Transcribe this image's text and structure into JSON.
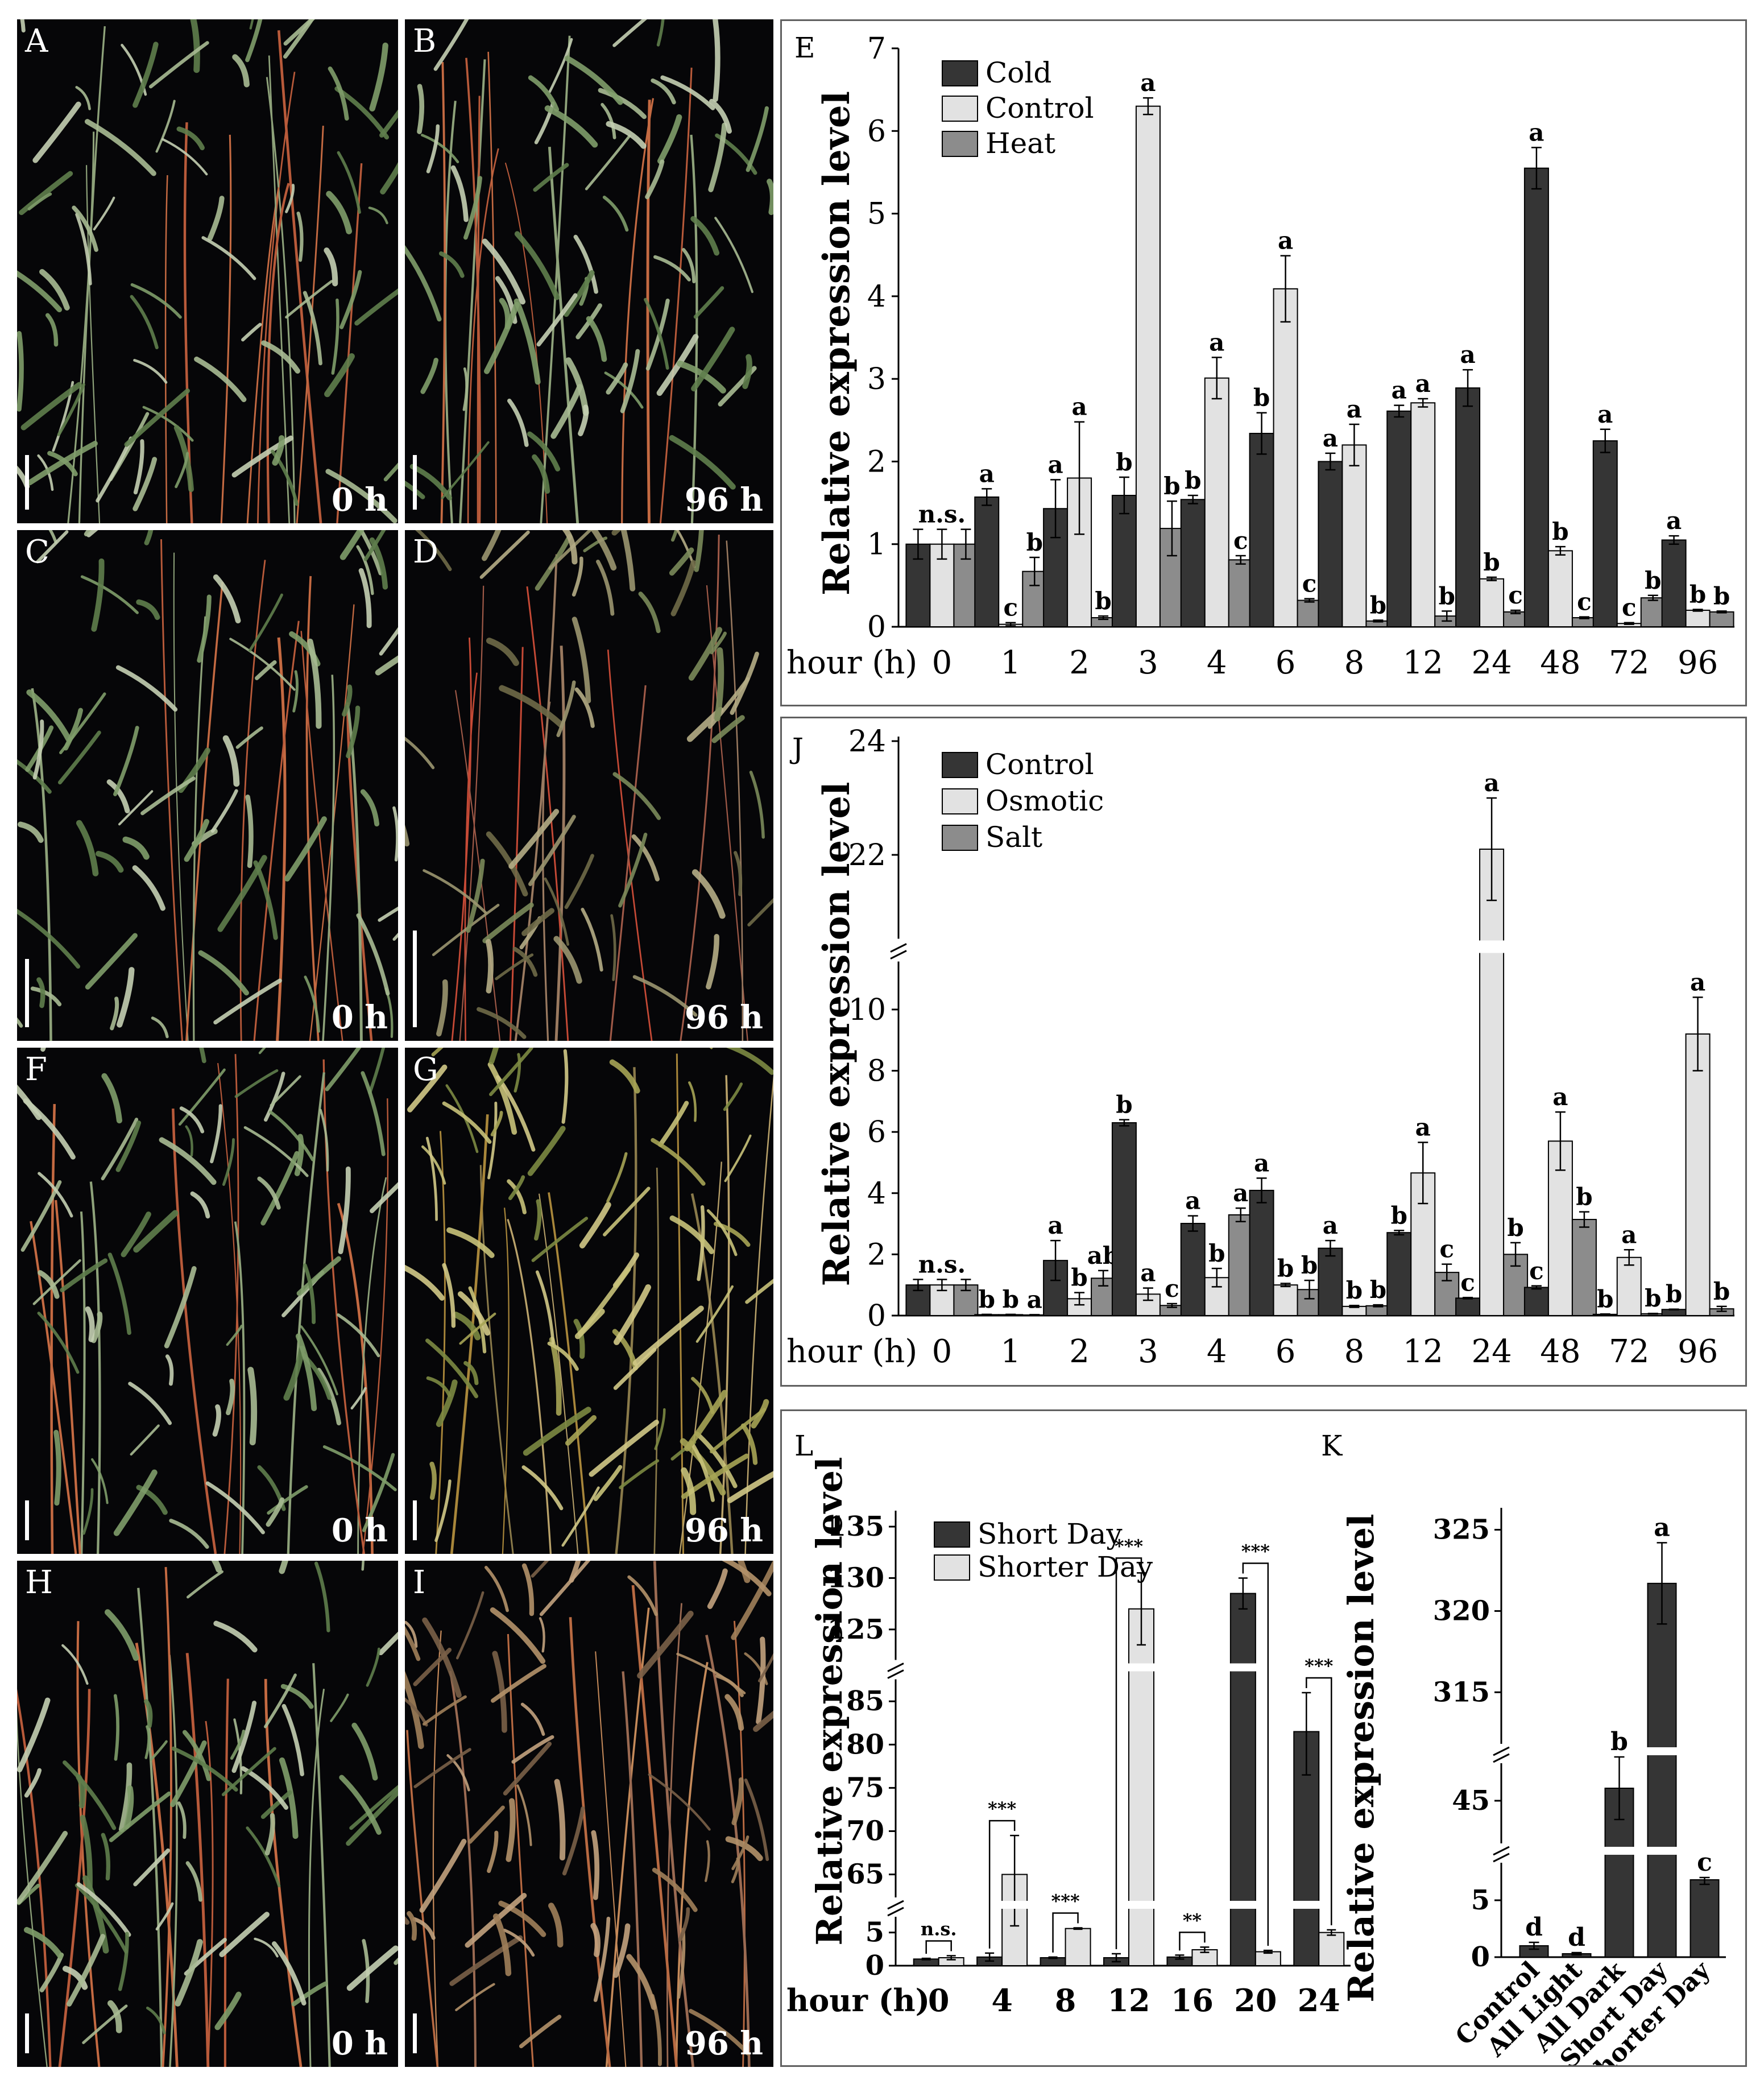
{
  "photos": [
    {
      "label": "A",
      "time": "0 h",
      "tone": "green"
    },
    {
      "label": "B",
      "time": "96 h",
      "tone": "green"
    },
    {
      "label": "C",
      "time": "0 h",
      "tone": "green"
    },
    {
      "label": "D",
      "time": "96 h",
      "tone": "dry"
    },
    {
      "label": "F",
      "time": "0 h",
      "tone": "green"
    },
    {
      "label": "G",
      "time": "96 h",
      "tone": "yellow"
    },
    {
      "label": "H",
      "time": "0 h",
      "tone": "green"
    },
    {
      "label": "I",
      "time": "96 h",
      "tone": "brown"
    }
  ],
  "colors": {
    "dark": "#353535",
    "light": "#e2e2e2",
    "mid": "#8c8c8c"
  },
  "chart_data": [
    {
      "panel": "E",
      "type": "bar",
      "ylabel": "Relative expression level",
      "xlabel": "hour (h)",
      "categories": [
        "0",
        "1",
        "2",
        "3",
        "4",
        "6",
        "8",
        "12",
        "24",
        "48",
        "72",
        "96"
      ],
      "ylim": [
        0,
        7
      ],
      "yticks": [
        0,
        1,
        2,
        3,
        4,
        5,
        6,
        7
      ],
      "series": [
        {
          "name": "Cold",
          "color": "dark",
          "values": [
            1.0,
            1.57,
            1.43,
            1.59,
            1.54,
            2.34,
            2.0,
            2.61,
            2.89,
            5.55,
            2.25,
            1.05
          ],
          "errors": [
            0.18,
            0.1,
            0.35,
            0.22,
            0.05,
            0.25,
            0.1,
            0.07,
            0.22,
            0.25,
            0.14,
            0.05
          ],
          "letters": [
            "",
            "a",
            "a",
            "b",
            "b",
            "b",
            "a",
            "a",
            "a",
            "a",
            "a",
            "a"
          ]
        },
        {
          "name": "Control",
          "color": "light",
          "values": [
            1.0,
            0.03,
            1.8,
            6.3,
            3.01,
            4.09,
            2.2,
            2.71,
            0.58,
            0.92,
            0.04,
            0.2
          ],
          "errors": [
            0.18,
            0.02,
            0.68,
            0.1,
            0.25,
            0.4,
            0.25,
            0.05,
            0.02,
            0.05,
            0.01,
            0.01
          ],
          "letters": [
            "n.s.",
            "c",
            "a",
            "a",
            "a",
            "a",
            "a",
            "a",
            "b",
            "b",
            "c",
            "b"
          ]
        },
        {
          "name": "Heat",
          "color": "mid",
          "values": [
            1.0,
            0.67,
            0.11,
            1.19,
            0.81,
            0.32,
            0.07,
            0.13,
            0.18,
            0.11,
            0.35,
            0.18
          ],
          "errors": [
            0.18,
            0.17,
            0.02,
            0.33,
            0.05,
            0.02,
            0.01,
            0.06,
            0.02,
            0.01,
            0.03,
            0.01
          ],
          "letters": [
            "",
            "b",
            "b",
            "b",
            "c",
            "c",
            "b",
            "b",
            "c",
            "c",
            "b",
            "b"
          ]
        }
      ]
    },
    {
      "panel": "J",
      "type": "bar",
      "ylabel": "Relative expression level",
      "xlabel": "hour (h)",
      "categories": [
        "0",
        "1",
        "2",
        "3",
        "4",
        "6",
        "8",
        "12",
        "24",
        "48",
        "72",
        "96"
      ],
      "ylim": [
        0,
        24
      ],
      "axis_break": [
        10.5,
        21
      ],
      "yticks": [
        0,
        2,
        4,
        6,
        8,
        10,
        22,
        24
      ],
      "series": [
        {
          "name": "Control",
          "color": "dark",
          "values": [
            1.0,
            0.03,
            1.8,
            6.3,
            3.01,
            4.09,
            2.2,
            2.71,
            0.57,
            0.92,
            0.04,
            0.2
          ],
          "errors": [
            0.18,
            0.01,
            0.65,
            0.1,
            0.25,
            0.4,
            0.25,
            0.07,
            0.02,
            0.05,
            0.01,
            0.01
          ],
          "letters": [
            "",
            "b",
            "a",
            "b",
            "a",
            "a",
            "a",
            "b",
            "c",
            "c",
            "b",
            "b"
          ]
        },
        {
          "name": "Osmotic",
          "color": "light",
          "values": [
            1.0,
            0.03,
            0.55,
            0.7,
            1.24,
            1.0,
            0.3,
            4.66,
            22.1,
            5.7,
            1.9,
            9.2
          ],
          "errors": [
            0.18,
            0.01,
            0.2,
            0.2,
            0.3,
            0.05,
            0.03,
            1.0,
            0.9,
            0.95,
            0.25,
            1.2
          ],
          "letters": [
            "n.s.",
            "b",
            "b",
            "a",
            "b",
            "b",
            "b",
            "a",
            "a",
            "a",
            "a",
            "a"
          ]
        },
        {
          "name": "Salt",
          "color": "mid",
          "values": [
            1.0,
            0.02,
            1.22,
            0.33,
            3.29,
            0.85,
            0.32,
            1.41,
            2.0,
            3.14,
            0.06,
            0.22
          ],
          "errors": [
            0.18,
            0.01,
            0.25,
            0.06,
            0.22,
            0.3,
            0.03,
            0.27,
            0.38,
            0.25,
            0.01,
            0.08
          ],
          "letters": [
            "",
            "a",
            "ab",
            "c",
            "a",
            "b",
            "b",
            "c",
            "b",
            "b",
            "b",
            "b"
          ]
        }
      ]
    },
    {
      "panel": "L",
      "type": "bar",
      "ylabel": "Relative expression level",
      "xlabel": "hour (h)",
      "categories": [
        "0",
        "4",
        "8",
        "12",
        "16",
        "20",
        "24"
      ],
      "ylim": [
        0,
        135
      ],
      "yticks": [
        0,
        5,
        65,
        70,
        75,
        80,
        85,
        125,
        130,
        135
      ],
      "series": [
        {
          "name": "Short Day",
          "color": "dark",
          "values": [
            1.0,
            1.3,
            1.2,
            1.2,
            1.3,
            128.5,
            81.5
          ],
          "errors": [
            0.1,
            0.6,
            0.1,
            0.6,
            0.3,
            1.5,
            5.0
          ]
        },
        {
          "name": "Shorter Day",
          "color": "light",
          "values": [
            1.2,
            65.0,
            5.6,
            127.0,
            2.4,
            2.1,
            5.0
          ],
          "errors": [
            0.3,
            4.5,
            0.1,
            3.5,
            0.4,
            0.2,
            0.4
          ]
        }
      ],
      "significance": [
        "n.s.",
        "***",
        "***",
        "***",
        "**",
        "***",
        "***"
      ]
    },
    {
      "panel": "K",
      "type": "bar",
      "ylabel": "Relative expression level",
      "categories": [
        "Control",
        "All Light",
        "All Dark",
        "Short Day",
        "Shorter Day"
      ],
      "yticks": [
        0,
        5,
        45,
        315,
        320,
        325
      ],
      "values": [
        1.0,
        0.3,
        45.4,
        321.7,
        6.8
      ],
      "errors": [
        0.3,
        0.1,
        1.0,
        2.5,
        0.4
      ],
      "letters": [
        "d",
        "d",
        "b",
        "a",
        "c"
      ],
      "color": "dark"
    }
  ]
}
